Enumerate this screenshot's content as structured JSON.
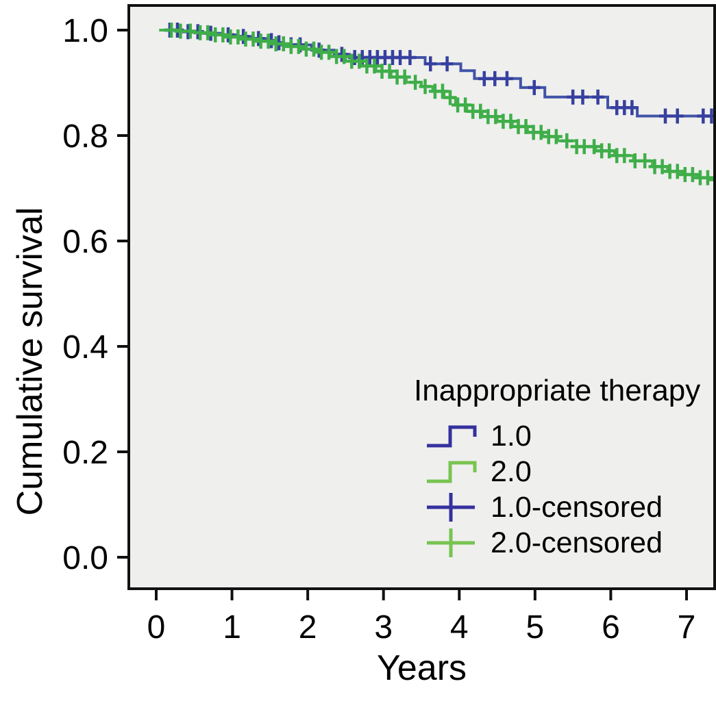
{
  "figure": {
    "background": "#ffffff",
    "text_color": "#000000"
  },
  "chart_data": {
    "type": "line",
    "subtype": "kaplan-meier-step",
    "title": "",
    "xlabel": "Years",
    "ylabel": "Cumulative survival",
    "xlim": [
      -0.36,
      7.37
    ],
    "ylim": [
      -0.06,
      1.05
    ],
    "grid": false,
    "plot_bg": "#EFEFED",
    "frame_color": "#111111",
    "xticks": [
      [
        "0",
        0
      ],
      [
        "1",
        1
      ],
      [
        "2",
        2
      ],
      [
        "3",
        3
      ],
      [
        "4",
        4
      ],
      [
        "5",
        5
      ],
      [
        "6",
        6
      ],
      [
        "7",
        7
      ]
    ],
    "yticks": [
      [
        "0.0",
        0.0
      ],
      [
        "0.2",
        0.2
      ],
      [
        "0.4",
        0.4
      ],
      [
        "0.6",
        0.6
      ],
      [
        "0.8",
        0.8
      ],
      [
        "1.0",
        1.0
      ]
    ],
    "legend": {
      "title": "Inappropriate therapy",
      "position": "inside lower right",
      "entries": [
        {
          "label": "1.0",
          "symbol": "step",
          "color": "#35319e"
        },
        {
          "label": "2.0",
          "symbol": "step",
          "color": "#78c351"
        },
        {
          "label": "1.0-censored",
          "symbol": "plus",
          "color": "#35319e"
        },
        {
          "label": "2.0-censored",
          "symbol": "plus",
          "color": "#78c351"
        }
      ]
    },
    "series": [
      {
        "name": "1.0",
        "color": "#4053a6",
        "censor_color": "#36409f",
        "steps": [
          [
            0.04,
            1.0
          ],
          [
            0.35,
            0.997
          ],
          [
            0.6,
            0.994
          ],
          [
            0.85,
            0.991
          ],
          [
            1.05,
            0.988
          ],
          [
            1.25,
            0.984
          ],
          [
            1.45,
            0.98
          ],
          [
            1.55,
            0.976
          ],
          [
            1.65,
            0.972
          ],
          [
            2.05,
            0.962
          ],
          [
            2.35,
            0.954
          ],
          [
            2.55,
            0.948
          ],
          [
            3.55,
            0.936
          ],
          [
            4.02,
            0.923
          ],
          [
            4.2,
            0.908
          ],
          [
            4.81,
            0.891
          ],
          [
            5.13,
            0.873
          ],
          [
            5.96,
            0.853
          ],
          [
            6.35,
            0.837
          ]
        ],
        "end_time": 7.37,
        "censors": [
          0.18,
          0.28,
          0.42,
          0.55,
          0.72,
          0.95,
          1.15,
          1.35,
          1.52,
          1.62,
          1.78,
          1.9,
          2.15,
          2.45,
          2.62,
          2.72,
          2.82,
          2.92,
          3.02,
          3.12,
          3.22,
          3.35,
          3.62,
          3.84,
          4.33,
          4.47,
          4.63,
          4.99,
          5.5,
          5.63,
          5.83,
          6.08,
          6.18,
          6.28,
          6.72,
          6.88,
          7.22,
          7.33
        ]
      },
      {
        "name": "2.0",
        "color": "#47b24c",
        "censor_color": "#3fae49",
        "steps": [
          [
            0.04,
            1.0
          ],
          [
            0.3,
            0.998
          ],
          [
            0.5,
            0.995
          ],
          [
            0.7,
            0.991
          ],
          [
            0.9,
            0.987
          ],
          [
            1.1,
            0.983
          ],
          [
            1.3,
            0.979
          ],
          [
            1.5,
            0.974
          ],
          [
            1.7,
            0.969
          ],
          [
            1.9,
            0.964
          ],
          [
            2.1,
            0.958
          ],
          [
            2.3,
            0.95
          ],
          [
            2.5,
            0.941
          ],
          [
            2.7,
            0.932
          ],
          [
            2.9,
            0.922
          ],
          [
            3.1,
            0.911
          ],
          [
            3.3,
            0.901
          ],
          [
            3.5,
            0.893
          ],
          [
            3.65,
            0.884
          ],
          [
            3.8,
            0.872
          ],
          [
            3.95,
            0.858
          ],
          [
            4.1,
            0.846
          ],
          [
            4.3,
            0.836
          ],
          [
            4.5,
            0.827
          ],
          [
            4.7,
            0.817
          ],
          [
            4.9,
            0.806
          ],
          [
            5.1,
            0.798
          ],
          [
            5.3,
            0.79
          ],
          [
            5.55,
            0.779
          ],
          [
            5.8,
            0.771
          ],
          [
            6.05,
            0.762
          ],
          [
            6.3,
            0.752
          ],
          [
            6.55,
            0.741
          ],
          [
            6.75,
            0.732
          ],
          [
            6.95,
            0.726
          ],
          [
            7.15,
            0.72
          ],
          [
            7.3,
            0.716
          ]
        ],
        "end_time": 7.37,
        "censors": [
          0.2,
          0.32,
          0.45,
          0.58,
          0.68,
          0.78,
          0.88,
          0.98,
          1.08,
          1.18,
          1.28,
          1.38,
          1.48,
          1.58,
          1.68,
          1.78,
          1.88,
          1.98,
          2.08,
          2.18,
          2.28,
          2.38,
          2.48,
          2.58,
          2.68,
          2.78,
          2.88,
          2.98,
          3.08,
          3.18,
          3.28,
          3.42,
          3.55,
          3.68,
          3.78,
          3.88,
          3.98,
          4.08,
          4.18,
          4.28,
          4.38,
          4.48,
          4.58,
          4.68,
          4.78,
          4.88,
          4.98,
          5.08,
          5.18,
          5.28,
          5.42,
          5.55,
          5.65,
          5.78,
          5.88,
          5.98,
          6.08,
          6.18,
          6.32,
          6.45,
          6.58,
          6.68,
          6.78,
          6.88,
          6.98,
          7.08,
          7.18,
          7.28
        ]
      }
    ]
  }
}
